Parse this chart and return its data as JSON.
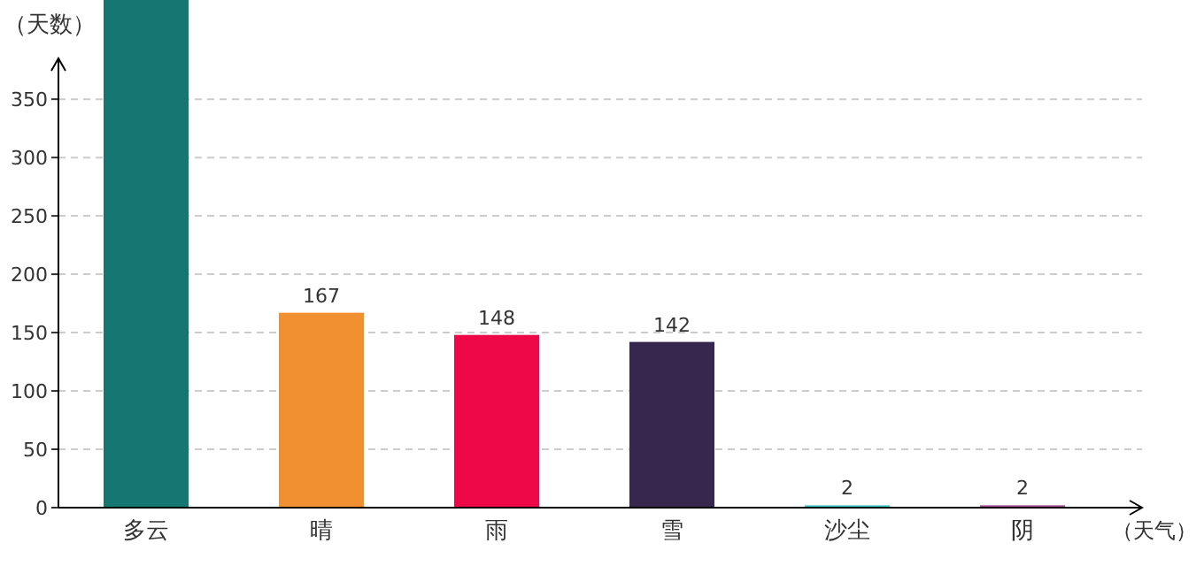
{
  "chart_data": {
    "type": "bar",
    "xlabel": "（天气）",
    "ylabel": "（天数）",
    "categories": [
      "多云",
      "晴",
      "雨",
      "雪",
      "沙尘",
      "阴"
    ],
    "values": [
      435,
      167,
      148,
      142,
      2,
      2
    ],
    "value_labels": [
      null,
      "167",
      "148",
      "142",
      "2",
      "2"
    ],
    "colors": [
      "#167671",
      "#f09030",
      "#ee0848",
      "#37264d",
      "#40c8c0",
      "#a05090"
    ],
    "ylim": [
      0,
      435
    ],
    "yticks": [
      0,
      50,
      100,
      150,
      200,
      250,
      300,
      350
    ],
    "grid": "y"
  }
}
